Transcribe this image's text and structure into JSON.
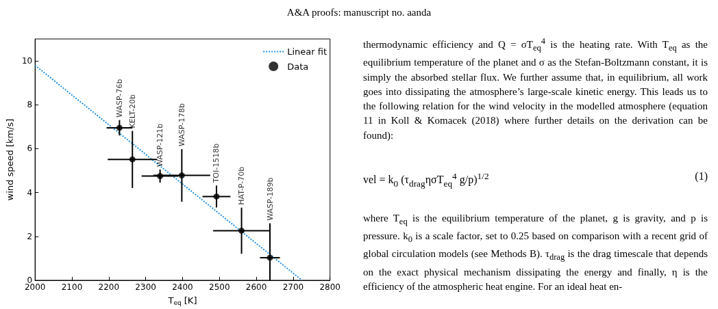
{
  "chart_data": {
    "type": "scatter",
    "xlabel": "T$_{eq}$ [K]",
    "ylabel": "wind speed [km/s]",
    "xlim": [
      2000,
      2800
    ],
    "xticks": [
      2000,
      2100,
      2200,
      2300,
      2400,
      2500,
      2600,
      2700,
      2800
    ],
    "ylim": [
      0,
      11
    ],
    "yticks": [
      0,
      2,
      4,
      6,
      8,
      10
    ],
    "grid": false,
    "legend": "top right",
    "series": [
      {
        "name": "Linear fit",
        "type": "line",
        "line_style": "dotted",
        "marker": "none",
        "color": "#1f8fe0",
        "x": [
          2000,
          2724
        ],
        "values": [
          9.8,
          0
        ]
      },
      {
        "name": "Data",
        "marker": "circle",
        "color": "#000000",
        "x": [
          2229,
          2264,
          2339,
          2398,
          2492,
          2560,
          2637
        ],
        "values": [
          6.95,
          5.51,
          4.75,
          4.78,
          3.82,
          2.26,
          1.03
        ],
        "errors": [
          0.35,
          1.3,
          0.3,
          1.2,
          0.5,
          1.05,
          [
            0,
            2.6
          ]
        ],
        "xerrors": [
          35,
          67,
          50,
          77,
          38,
          77,
          27
        ]
      }
    ],
    "annotations": [
      "WASP-76b",
      "KELT-20b",
      "WASP-121b",
      "WASP-178b",
      "TOI-1518b",
      "HAT-P-70b",
      "WASP-189b",
      "A&A proofs: manuscript no. aanda",
      "thermodynamic efficiency and Q = σT$_{eq}$$^{4}$ is the heating rate. With T$_{eq}$ as the equilibrium temperature of the planet and σ as the Stefan-Boltzmann constant, it is simply the absorbed stellar flux. We further assume that, in equilibrium, all work goes into dissipating the atmosphere’s large-scale kinetic energy. This leads us to the following relation for the wind velocity in the modelled atmosphere (equation 11 in Koll & Komacek (2018) where further details on the derivation can be found):",
      "vel = k$_{0}$ (τ$_{drag}$ησT$_{eq}$$^{4}$ g/p)$^{1/2}$",
      "(1)",
      "where T$_{eq}$ is the equilibrium temperature of the planet, g is gravity, and p is pressure. k$_{0}$ is a scale factor, set to 0.25 based on comparison with a recent grid of global circulation models (see Methods B). τ$_{drag}$ is the drag timescale that depends on the exact physical mechanism dissipating the energy and finally, η is the efficiency of the atmospheric heat engine. For an ideal heat en-"
    ]
  }
}
